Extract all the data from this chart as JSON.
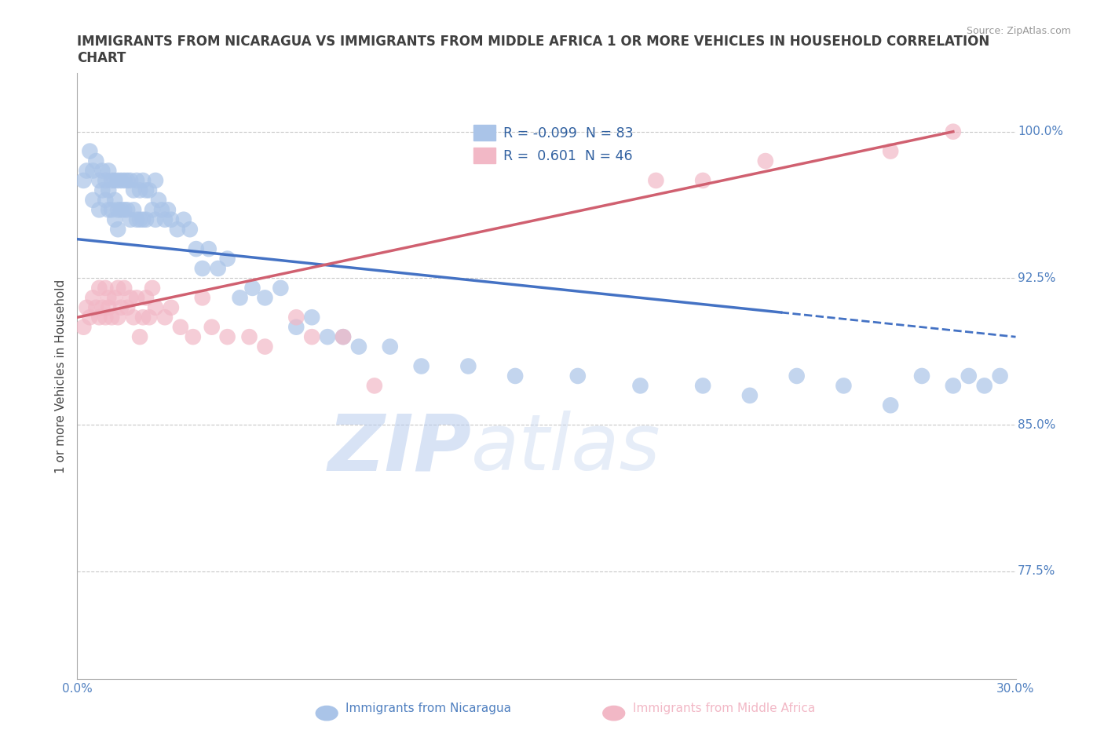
{
  "title": "IMMIGRANTS FROM NICARAGUA VS IMMIGRANTS FROM MIDDLE AFRICA 1 OR MORE VEHICLES IN HOUSEHOLD CORRELATION\nCHART",
  "ylabel": "1 or more Vehicles in Household",
  "source_text": "Source: ZipAtlas.com",
  "xlim": [
    0.0,
    0.3
  ],
  "ylim": [
    0.72,
    1.03
  ],
  "yticks": [
    0.775,
    0.85,
    0.925,
    1.0
  ],
  "ytick_labels": [
    "77.5%",
    "85.0%",
    "92.5%",
    "100.0%"
  ],
  "xticks": [
    0.0,
    0.05,
    0.1,
    0.15,
    0.2,
    0.25,
    0.3
  ],
  "xtick_labels": [
    "0.0%",
    "",
    "",
    "",
    "",
    "",
    "30.0%"
  ],
  "r_nicaragua": -0.099,
  "n_nicaragua": 83,
  "r_middle_africa": 0.601,
  "n_middle_africa": 46,
  "nicaragua_color": "#aac4e8",
  "middle_africa_color": "#f2b8c6",
  "trend_nicaragua_color": "#4472c4",
  "trend_middle_africa_color": "#d06070",
  "watermark_color": "#cdd8ee",
  "background_color": "#ffffff",
  "grid_color": "#c8c8c8",
  "title_color": "#404040",
  "axis_label_color": "#5080c0",
  "legend_label_color": "#3060a0",
  "nicaragua_x": [
    0.002,
    0.003,
    0.004,
    0.005,
    0.005,
    0.006,
    0.007,
    0.007,
    0.008,
    0.008,
    0.009,
    0.009,
    0.01,
    0.01,
    0.01,
    0.011,
    0.011,
    0.012,
    0.012,
    0.012,
    0.013,
    0.013,
    0.013,
    0.014,
    0.014,
    0.015,
    0.015,
    0.016,
    0.016,
    0.017,
    0.017,
    0.018,
    0.018,
    0.019,
    0.019,
    0.02,
    0.02,
    0.021,
    0.021,
    0.022,
    0.022,
    0.023,
    0.024,
    0.025,
    0.025,
    0.026,
    0.027,
    0.028,
    0.029,
    0.03,
    0.032,
    0.034,
    0.036,
    0.038,
    0.04,
    0.042,
    0.045,
    0.048,
    0.052,
    0.056,
    0.06,
    0.065,
    0.07,
    0.075,
    0.08,
    0.085,
    0.09,
    0.1,
    0.11,
    0.125,
    0.14,
    0.16,
    0.18,
    0.2,
    0.215,
    0.23,
    0.245,
    0.26,
    0.27,
    0.28,
    0.285,
    0.29,
    0.295
  ],
  "nicaragua_y": [
    0.975,
    0.98,
    0.99,
    0.98,
    0.965,
    0.985,
    0.975,
    0.96,
    0.98,
    0.97,
    0.975,
    0.965,
    0.98,
    0.97,
    0.96,
    0.975,
    0.96,
    0.975,
    0.965,
    0.955,
    0.975,
    0.96,
    0.95,
    0.975,
    0.96,
    0.975,
    0.96,
    0.975,
    0.96,
    0.975,
    0.955,
    0.97,
    0.96,
    0.975,
    0.955,
    0.97,
    0.955,
    0.975,
    0.955,
    0.97,
    0.955,
    0.97,
    0.96,
    0.975,
    0.955,
    0.965,
    0.96,
    0.955,
    0.96,
    0.955,
    0.95,
    0.955,
    0.95,
    0.94,
    0.93,
    0.94,
    0.93,
    0.935,
    0.915,
    0.92,
    0.915,
    0.92,
    0.9,
    0.905,
    0.895,
    0.895,
    0.89,
    0.89,
    0.88,
    0.88,
    0.875,
    0.875,
    0.87,
    0.87,
    0.865,
    0.875,
    0.87,
    0.86,
    0.875,
    0.87,
    0.875,
    0.87,
    0.875
  ],
  "middle_africa_x": [
    0.002,
    0.003,
    0.004,
    0.005,
    0.006,
    0.007,
    0.007,
    0.008,
    0.009,
    0.009,
    0.01,
    0.01,
    0.011,
    0.012,
    0.013,
    0.013,
    0.014,
    0.015,
    0.016,
    0.017,
    0.018,
    0.019,
    0.02,
    0.021,
    0.022,
    0.023,
    0.024,
    0.025,
    0.028,
    0.03,
    0.033,
    0.037,
    0.04,
    0.043,
    0.048,
    0.055,
    0.06,
    0.07,
    0.075,
    0.085,
    0.095,
    0.185,
    0.2,
    0.22,
    0.26,
    0.28
  ],
  "middle_africa_y": [
    0.9,
    0.91,
    0.905,
    0.915,
    0.91,
    0.905,
    0.92,
    0.91,
    0.905,
    0.92,
    0.91,
    0.915,
    0.905,
    0.915,
    0.905,
    0.92,
    0.91,
    0.92,
    0.91,
    0.915,
    0.905,
    0.915,
    0.895,
    0.905,
    0.915,
    0.905,
    0.92,
    0.91,
    0.905,
    0.91,
    0.9,
    0.895,
    0.915,
    0.9,
    0.895,
    0.895,
    0.89,
    0.905,
    0.895,
    0.895,
    0.87,
    0.975,
    0.975,
    0.985,
    0.99,
    1.0
  ],
  "trend_nic_x0": 0.0,
  "trend_nic_x_solid_end": 0.225,
  "trend_nic_x1": 0.3,
  "trend_nic_y0": 0.945,
  "trend_nic_y1": 0.895,
  "trend_maf_x0": 0.0,
  "trend_maf_x1": 0.28,
  "trend_maf_y0": 0.905,
  "trend_maf_y1": 1.0
}
